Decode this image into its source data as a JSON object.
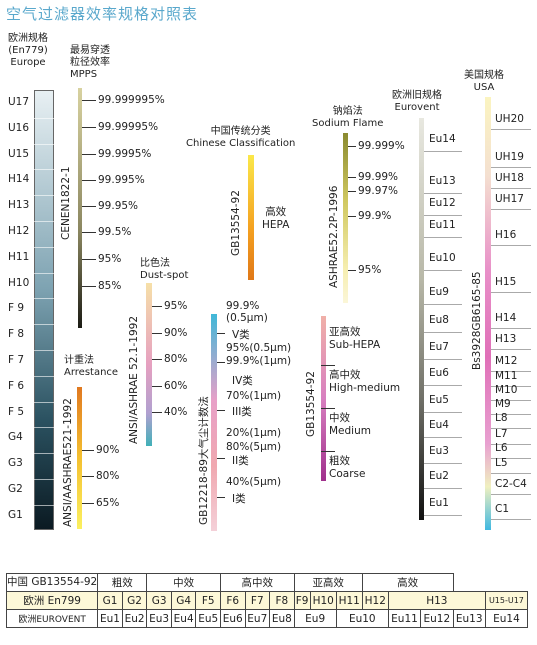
{
  "title": "空气过滤器效率规格对照表",
  "europe": {
    "header": [
      "欧洲规格",
      "(En779)",
      "Europe"
    ],
    "grades": [
      "U17",
      "U16",
      "U15",
      "H14",
      "H13",
      "H12",
      "H11",
      "H10",
      "F 9",
      "F 8",
      "F 7",
      "F 6",
      "F 5",
      "G4",
      "G3",
      "G2",
      "G1"
    ]
  },
  "mpps": {
    "header": [
      "最易穿透",
      "粒径效率",
      "MPPS"
    ],
    "std": "CENEN1822-1",
    "ticks": [
      "99.999995%",
      "99.99995%",
      "99.9995%",
      "99.995%",
      "99.95%",
      "99.5%",
      "95%",
      "85%"
    ]
  },
  "arrestance": {
    "header": [
      "计重法",
      "Arrestance"
    ],
    "std": "ANSI/AASHRAE521-1992",
    "ticks": [
      "90%",
      "80%",
      "65%"
    ]
  },
  "dustspot": {
    "header": [
      "比色法",
      "Dust-spot"
    ],
    "std": "ANSI/ASHRAE 52.1-1992",
    "ticks": [
      "95%",
      "90%",
      "80%",
      "60%",
      "40%"
    ]
  },
  "chinese": {
    "header": [
      "中国传统分类",
      "Chinese Classification"
    ],
    "std": "GB13554-92",
    "labels": [
      "高效",
      "HEPA"
    ]
  },
  "gb12218": {
    "std": "GB12218-89大气尘计数法",
    "lines": [
      "99.9%",
      "(0.5μm)",
      "V类",
      "95%(0.5μm)",
      "99.9%(1μm)",
      "IV类",
      "70%(1μm)",
      "III类",
      "20%(1μm)",
      "80%(5μm)",
      "II类",
      "40%(5μm)",
      "I类"
    ]
  },
  "sodium": {
    "header": [
      "钠焰法",
      "Sodium Flame"
    ],
    "std": "ASHRAE52.2P-1996",
    "ticks": [
      "99.999%",
      "99.99%",
      "99.97%",
      "99.9%",
      "95%"
    ]
  },
  "gb13554_low": {
    "std": "GB13554-92",
    "labels": [
      [
        "亚高效",
        "Sub-HEPA"
      ],
      [
        "高中效",
        "High-medium"
      ],
      [
        "中效",
        "Medium"
      ],
      [
        "粗效",
        "Coarse"
      ]
    ]
  },
  "eurovent": {
    "header": [
      "欧洲旧规格",
      "Eurovent"
    ],
    "grades": [
      "Eu14",
      "Eu13",
      "Eu12",
      "Eu11",
      "Eu10",
      "Eu9",
      "Eu8",
      "Eu7",
      "Eu6",
      "Eu5",
      "Eu4",
      "Eu3",
      "Eu2",
      "Eu1"
    ]
  },
  "usa": {
    "header": [
      "美国规格",
      "USA"
    ],
    "std": "Bs3928GB6165-85",
    "grades": [
      "UH20",
      "UH19",
      "UH18",
      "UH17",
      "H16",
      "H15",
      "H14",
      "H13",
      "M12",
      "M11",
      "M10",
      "M9",
      "L8",
      "L7",
      "L6",
      "L5",
      "C2-C4",
      "C1"
    ]
  },
  "table": {
    "row1": [
      "中国 GB13554-92",
      "粗效",
      "中效",
      "高中效",
      "亚高效",
      "高效"
    ],
    "row2": [
      "欧洲 En799",
      "G1",
      "G2",
      "G3",
      "G4",
      "F5",
      "F6",
      "F7",
      "F8",
      "F9",
      "H10",
      "H11",
      "H12",
      "H13",
      "U15-U17"
    ],
    "row3": [
      "欧洲EUROVENT",
      "Eu1",
      "Eu2",
      "Eu3",
      "Eu4",
      "Eu5",
      "Eu6",
      "Eu7",
      "Eu8",
      "Eu9",
      "Eu10",
      "Eu11",
      "Eu12",
      "Eu13",
      "Eu14"
    ]
  }
}
